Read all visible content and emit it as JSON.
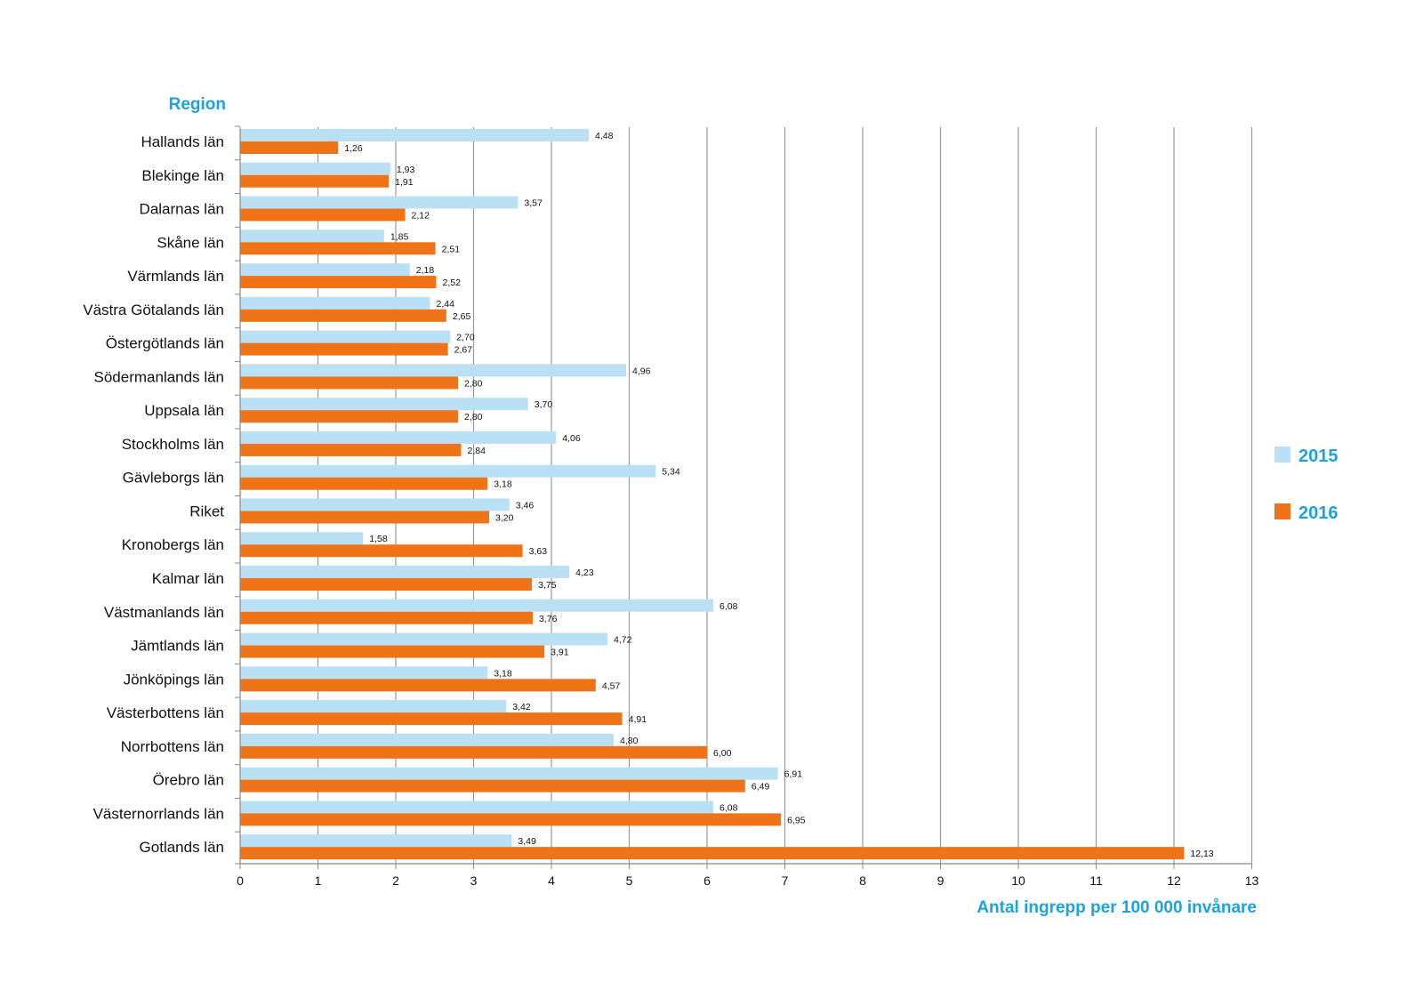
{
  "chart_data": {
    "type": "bar",
    "orientation": "horizontal",
    "ylabel": "Region",
    "xlabel": "Antal ingrepp per 100 000 invånare",
    "xlim": [
      0,
      13
    ],
    "xticks": [
      "0",
      "1",
      "2",
      "3",
      "4",
      "5",
      "6",
      "7",
      "8",
      "9",
      "10",
      "11",
      "12",
      "13"
    ],
    "grid": "vertical",
    "legend_position": "right",
    "categories": [
      "Hallands län",
      "Blekinge län",
      "Dalarnas län",
      "Skåne län",
      "Värmlands län",
      "Västra Götalands län",
      "Östergötlands län",
      "Södermanlands län",
      "Uppsala län",
      "Stockholms län",
      "Gävleborgs län",
      "Riket",
      "Kronobergs län",
      "Kalmar län",
      "Västmanlands län",
      "Jämtlands län",
      "Jönköpings län",
      "Västerbottens län",
      "Norrbottens län",
      "Örebro län",
      "Västernorrlands län",
      "Gotlands län"
    ],
    "series": [
      {
        "name": "2015",
        "color": "#b9e0f5",
        "values": [
          4.48,
          1.93,
          3.57,
          1.85,
          2.18,
          2.44,
          2.7,
          4.96,
          3.7,
          4.06,
          5.34,
          3.46,
          1.58,
          4.23,
          6.08,
          4.72,
          3.18,
          3.42,
          4.8,
          6.91,
          6.08,
          3.49
        ],
        "labels": [
          "4,48",
          "1,93",
          "3,57",
          "1,85",
          "2,18",
          "2,44",
          "2,70",
          "4,96",
          "3,70",
          "4,06",
          "5,34",
          "3,46",
          "1,58",
          "4,23",
          "6,08",
          "4,72",
          "3,18",
          "3,42",
          "4,80",
          "6,91",
          "6,08",
          "3,49"
        ]
      },
      {
        "name": "2016",
        "color": "#f07318",
        "values": [
          1.26,
          1.91,
          2.12,
          2.51,
          2.52,
          2.65,
          2.67,
          2.8,
          2.8,
          2.84,
          3.18,
          3.2,
          3.63,
          3.75,
          3.76,
          3.91,
          4.57,
          4.91,
          6.0,
          6.49,
          6.95,
          12.13
        ],
        "labels": [
          "1,26",
          "1,91",
          "2,12",
          "2,51",
          "2,52",
          "2,65",
          "2,67",
          "2,80",
          "2,80",
          "2,84",
          "3,18",
          "3,20",
          "3,63",
          "3,75",
          "3,76",
          "3,91",
          "4,57",
          "4,91",
          "6,00",
          "6,49",
          "6,95",
          "12,13"
        ]
      }
    ],
    "colors": {
      "accent": "#1aa3dd",
      "grid": "#9a9a9a",
      "axis": "#888888"
    }
  }
}
